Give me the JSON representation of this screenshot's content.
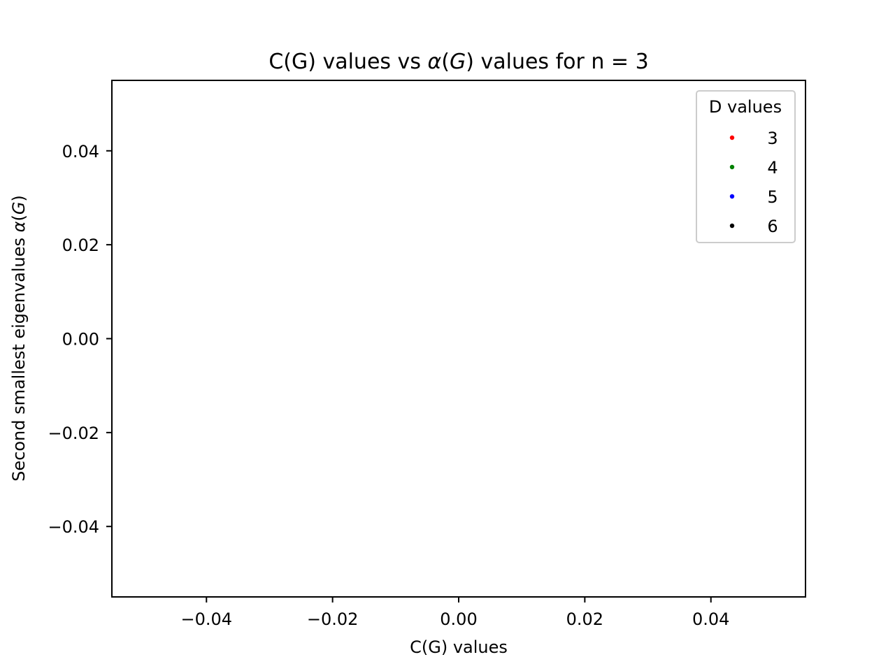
{
  "chart_data": {
    "type": "scatter",
    "title_text": "C(G) values vs ",
    "title_alpha": "α",
    "title_open": "(",
    "title_var": "G",
    "title_rest": ") values for n = 3",
    "xlabel": "C(G) values",
    "ylabel_text": "Second smallest eigenvalues ",
    "ylabel_alpha": "α",
    "ylabel_open": "(",
    "ylabel_var": "G",
    "ylabel_close": ")",
    "xlim": [
      -0.055,
      0.055
    ],
    "ylim": [
      -0.055,
      0.055
    ],
    "xticks": [
      -0.04,
      -0.02,
      0.0,
      0.02,
      0.04
    ],
    "yticks": [
      -0.04,
      -0.02,
      0.0,
      0.02,
      0.04
    ],
    "xtick_labels": [
      "−0.04",
      "−0.02",
      "0.00",
      "0.02",
      "0.04"
    ],
    "ytick_labels": [
      "−0.04",
      "−0.02",
      "0.00",
      "0.02",
      "0.04"
    ],
    "grid": false,
    "legend": {
      "title": "D values",
      "placement": "top-right",
      "entries": [
        {
          "label": "3",
          "color": "#ff0000"
        },
        {
          "label": "4",
          "color": "#008000"
        },
        {
          "label": "5",
          "color": "#0000ff"
        },
        {
          "label": "6",
          "color": "#000000"
        }
      ]
    },
    "series": [
      {
        "name": "3",
        "color": "#ff0000",
        "x": [],
        "y": []
      },
      {
        "name": "4",
        "color": "#008000",
        "x": [],
        "y": []
      },
      {
        "name": "5",
        "color": "#0000ff",
        "x": [],
        "y": []
      },
      {
        "name": "6",
        "color": "#000000",
        "x": [],
        "y": []
      }
    ]
  }
}
